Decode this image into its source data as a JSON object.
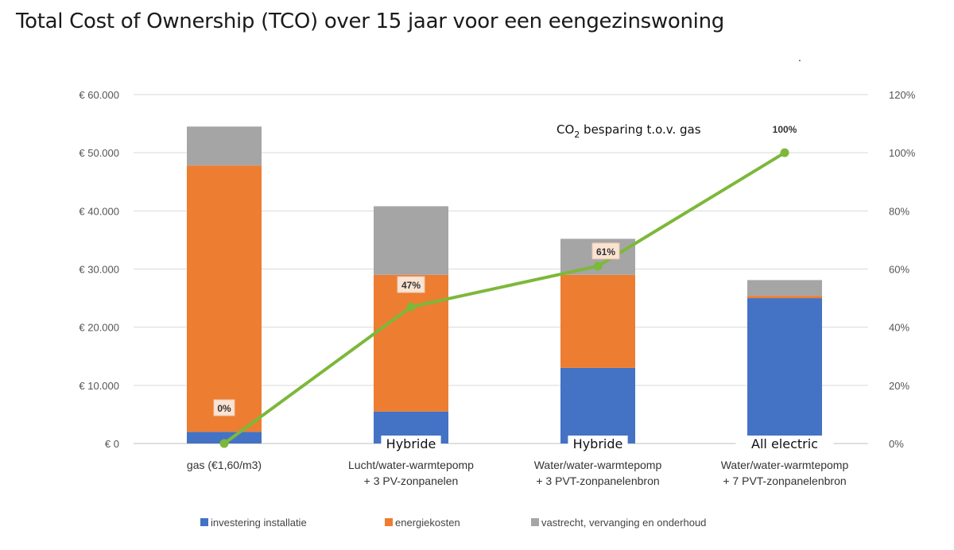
{
  "chart_data": {
    "type": "bar",
    "title": "Total Cost of Ownership (TCO) over 15 jaar voor een eengezinswoning",
    "stray_mark": ".",
    "categories": [
      {
        "tag": "",
        "lines": [
          "gas (€1,60/m3)"
        ]
      },
      {
        "tag": "Hybride",
        "lines": [
          "Lucht/water-warmtepomp",
          "+ 3 PV-zonpanelen"
        ]
      },
      {
        "tag": "Hybride",
        "lines": [
          "Water/water-warmtepomp",
          "+ 3 PVT-zonpanelenbron"
        ]
      },
      {
        "tag": "All electric",
        "lines": [
          "Water/water-warmtepomp",
          "+ 7 PVT-zonpanelenbron"
        ]
      }
    ],
    "series": [
      {
        "name": "investering installatie",
        "color": "#4472C4",
        "values": [
          2000,
          5500,
          13000,
          25000
        ]
      },
      {
        "name": "energiekosten",
        "color": "#ED7D31",
        "values": [
          45800,
          23500,
          16000,
          400
        ]
      },
      {
        "name": "vastrecht, vervanging en onderhoud",
        "color": "#A5A5A5",
        "values": [
          6700,
          11800,
          6200,
          2700
        ]
      }
    ],
    "line_series": {
      "name": "CO2 besparing t.o.v. gas",
      "label_main": "CO",
      "label_sub": "2",
      "label_rest": " besparing t.o.v. gas",
      "color": "#7DB83A",
      "values": [
        0,
        47,
        61,
        100
      ],
      "labels": [
        "0%",
        "47%",
        "61%",
        "100%"
      ]
    },
    "y_left": {
      "min": 0,
      "max": 60000,
      "ticks": [
        "€ 0",
        "€ 10.000",
        "€ 20.000",
        "€ 30.000",
        "€ 40.000",
        "€ 50.000",
        "€ 60.000"
      ]
    },
    "y_right": {
      "min": 0,
      "max": 120,
      "ticks": [
        "0%",
        "20%",
        "40%",
        "60%",
        "80%",
        "100%",
        "120%"
      ]
    },
    "legend_position": "bottom"
  }
}
